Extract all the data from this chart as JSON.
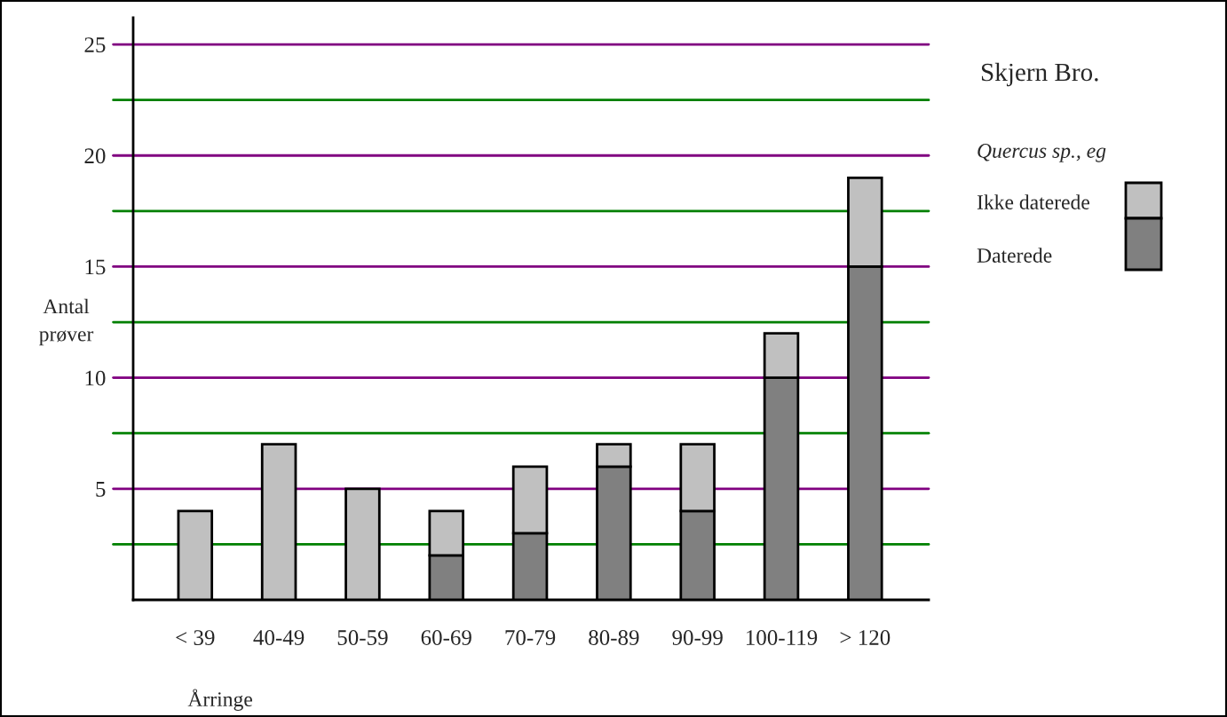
{
  "chart_data": {
    "type": "bar",
    "title": "Skjern Bro.",
    "subtitle": "Quercus sp., eg",
    "xlabel": "Årringe",
    "ylabel": "Antal\nprøver",
    "categories": [
      "< 39",
      "40-49",
      "50-59",
      "60-69",
      "70-79",
      "80-89",
      "90-99",
      "100-119",
      "> 120"
    ],
    "stacked": true,
    "series": [
      {
        "name": "Daterede",
        "color": "#808080",
        "values": [
          0,
          0,
          0,
          2,
          3,
          6,
          4,
          10,
          15
        ]
      },
      {
        "name": "Ikke daterede",
        "color": "#c0c0c0",
        "values": [
          4,
          7,
          5,
          2,
          3,
          1,
          3,
          2,
          4
        ]
      }
    ],
    "ylim": [
      0,
      26.2
    ],
    "yticks": [
      5,
      10,
      15,
      20,
      25
    ],
    "ref_lines": [
      {
        "axis": "y",
        "value": 2.5,
        "color": "#008000"
      },
      {
        "axis": "y",
        "value": 5,
        "color": "#800080"
      },
      {
        "axis": "y",
        "value": 7.5,
        "color": "#008000"
      },
      {
        "axis": "y",
        "value": 10,
        "color": "#800080"
      },
      {
        "axis": "y",
        "value": 12.5,
        "color": "#008000"
      },
      {
        "axis": "y",
        "value": 15,
        "color": "#800080"
      },
      {
        "axis": "y",
        "value": 17.5,
        "color": "#008000"
      },
      {
        "axis": "y",
        "value": 20,
        "color": "#800080"
      },
      {
        "axis": "y",
        "value": 22.5,
        "color": "#008000"
      },
      {
        "axis": "y",
        "value": 25,
        "color": "#800080"
      }
    ],
    "legend": "right"
  }
}
